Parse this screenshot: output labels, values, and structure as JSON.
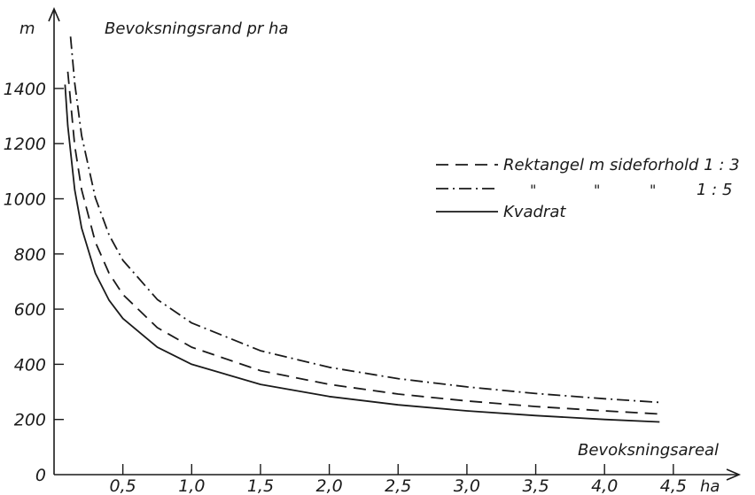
{
  "chart_data": {
    "type": "line",
    "ylabel_unit": "m",
    "ylabel": "Bevoksningsrand pr ha",
    "xlabel": "Bevoksningsareal",
    "xlabel_unit": "ha",
    "xlim": [
      0,
      4.5
    ],
    "ylim": [
      0,
      1600
    ],
    "x_ticks": [
      0.5,
      1.0,
      1.5,
      2.0,
      2.5,
      3.0,
      3.5,
      4.0,
      4.5
    ],
    "x_tick_labels": [
      "0,5",
      "1,0",
      "1,5",
      "2,0",
      "2,5",
      "3,0",
      "3,5",
      "4,0",
      "4,5"
    ],
    "y_ticks": [
      0,
      200,
      400,
      600,
      800,
      1000,
      1200,
      1400
    ],
    "y_tick_labels": [
      "0",
      "200",
      "400",
      "600",
      "800",
      "1000",
      "1200",
      "1400"
    ],
    "grid": false,
    "legend_position": "right",
    "legend": [
      {
        "label": "Rektangel m sideforhold 1 : 3",
        "style": "dashed"
      },
      {
        "label_ditto": [
          "\"",
          "\"",
          "\""
        ],
        "ratio": "1 : 5",
        "style": "dash-dot"
      },
      {
        "label": "Kvadrat",
        "style": "solid"
      }
    ],
    "series": [
      {
        "style": "dashed",
        "x": [
          0.1,
          0.15,
          0.2,
          0.3,
          0.4,
          0.5,
          0.75,
          1.0,
          1.5,
          2.0,
          2.5,
          3.0,
          3.5,
          4.0,
          4.4
        ],
        "y": [
          1461,
          1193,
          1033,
          843,
          730,
          653,
          533,
          462,
          377,
          327,
          292,
          267,
          247,
          231,
          220
        ]
      },
      {
        "style": "dash-dot",
        "x": [
          0.12,
          0.15,
          0.2,
          0.3,
          0.4,
          0.5,
          0.75,
          1.0,
          1.5,
          2.0,
          2.5,
          3.0,
          3.5,
          4.0,
          4.4
        ],
        "y": [
          1588,
          1420,
          1229,
          1004,
          869,
          777,
          635,
          550,
          449,
          389,
          348,
          318,
          294,
          275,
          262
        ]
      },
      {
        "style": "solid",
        "x": [
          0.08,
          0.1,
          0.15,
          0.2,
          0.3,
          0.4,
          0.5,
          0.75,
          1.0,
          1.5,
          2.0,
          2.5,
          3.0,
          3.5,
          4.0,
          4.4
        ],
        "y": [
          1414,
          1265,
          1033,
          894,
          730,
          632,
          566,
          462,
          400,
          327,
          283,
          253,
          231,
          214,
          200,
          191
        ]
      }
    ]
  }
}
